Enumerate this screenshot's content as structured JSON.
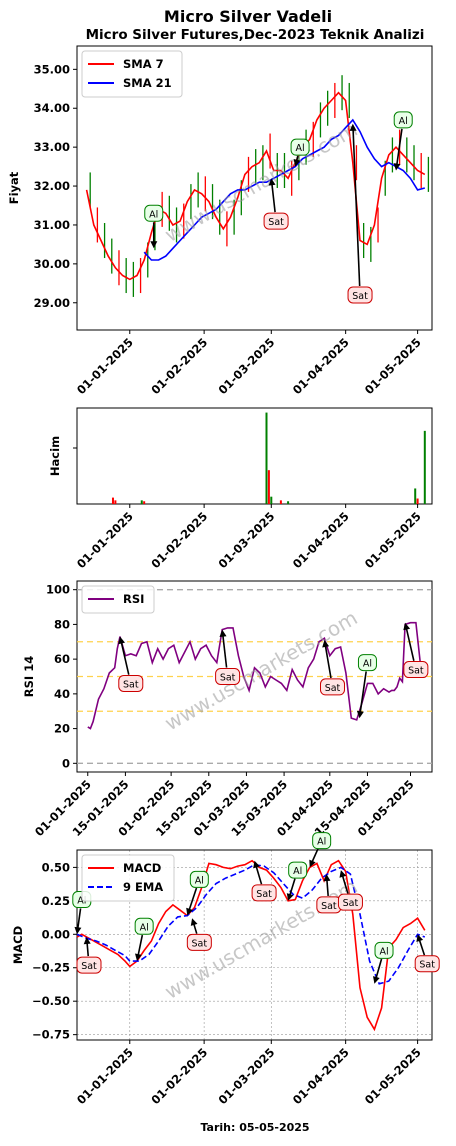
{
  "title": "Micro Silver Vadeli",
  "subtitle": "Micro Silver Futures,Dec-2023 Teknik Analizi",
  "footer": "Tarih: 05-05-2025",
  "watermark": "www.uscmarkets.com",
  "colors": {
    "up": "#008000",
    "down": "#ff0000",
    "sma7": "#ff0000",
    "sma21": "#0000ff",
    "rsi": "#800080",
    "macd": "#ff0000",
    "ema9": "#0000ff",
    "ref": "#ffd24d",
    "al": "#008000",
    "sat": "#cc0000"
  },
  "chart_data": [
    {
      "type": "line",
      "panel": "price",
      "ylabel": "Fiyat",
      "ylim": [
        28.3,
        35.6
      ],
      "yticks": [
        "29.00",
        "30.00",
        "31.00",
        "32.00",
        "33.00",
        "34.00",
        "35.00"
      ],
      "ytick_values": [
        29,
        30,
        31,
        32,
        33,
        34,
        35
      ],
      "xticks": [
        "01-01-2025",
        "01-02-2025",
        "01-03-2025",
        "01-04-2025",
        "01-05-2025"
      ],
      "xlim": [
        -22,
        126
      ],
      "xtick_days": [
        0,
        31,
        59,
        90,
        120
      ],
      "legend": "top-left",
      "series": [
        {
          "name": "SMA 7",
          "x": [
            -18,
            -15,
            -12,
            -9,
            -6,
            -3,
            0,
            3,
            6,
            9,
            12,
            15,
            18,
            21,
            24,
            27,
            30,
            33,
            36,
            39,
            42,
            45,
            48,
            51,
            54,
            57,
            60,
            63,
            66,
            69,
            72,
            75,
            78,
            81,
            84,
            87,
            90,
            93,
            96,
            99,
            102,
            105,
            108,
            111,
            114,
            117,
            120,
            123
          ],
          "y": [
            31.9,
            31.0,
            30.6,
            30.2,
            29.9,
            29.7,
            29.6,
            29.7,
            30.1,
            30.8,
            31.4,
            31.3,
            31.0,
            31.1,
            31.6,
            31.9,
            31.8,
            31.6,
            31.2,
            30.9,
            31.2,
            31.7,
            32.3,
            32.5,
            32.6,
            32.9,
            32.4,
            32.4,
            32.2,
            32.6,
            33.0,
            33.2,
            33.7,
            34.0,
            34.2,
            34.4,
            34.2,
            32.6,
            30.6,
            30.5,
            31.0,
            32.2,
            32.8,
            33.0,
            32.8,
            32.6,
            32.4,
            32.3
          ]
        },
        {
          "name": "SMA 21",
          "x": [
            6,
            9,
            12,
            15,
            18,
            21,
            24,
            27,
            30,
            33,
            36,
            39,
            42,
            45,
            48,
            51,
            54,
            57,
            60,
            63,
            66,
            69,
            72,
            75,
            78,
            81,
            84,
            87,
            90,
            93,
            96,
            99,
            102,
            105,
            108,
            111,
            114,
            117,
            120,
            123
          ],
          "y": [
            30.3,
            30.1,
            30.1,
            30.2,
            30.4,
            30.6,
            30.8,
            31.0,
            31.2,
            31.3,
            31.4,
            31.6,
            31.8,
            31.9,
            31.9,
            32.0,
            32.1,
            32.1,
            32.2,
            32.3,
            32.4,
            32.5,
            32.7,
            32.8,
            32.9,
            33.0,
            33.2,
            33.3,
            33.5,
            33.7,
            33.4,
            33.0,
            32.7,
            32.5,
            32.6,
            32.5,
            32.4,
            32.2,
            31.9,
            31.95
          ]
        }
      ],
      "annotations": [
        {
          "label": "Al",
          "x": 10,
          "y": 30.4,
          "tx": 10,
          "ty": 31.3
        },
        {
          "label": "Sat",
          "x": 59,
          "y": 32.2,
          "tx": 61,
          "ty": 31.1
        },
        {
          "label": "Al",
          "x": 69,
          "y": 32.5,
          "tx": 71,
          "ty": 33.0
        },
        {
          "label": "Sat",
          "x": 93,
          "y": 33.6,
          "tx": 96,
          "ty": 29.2
        },
        {
          "label": "Al",
          "x": 111,
          "y": 32.4,
          "tx": 114,
          "ty": 33.7
        }
      ]
    },
    {
      "type": "bar",
      "panel": "volume",
      "ylabel": "Hacim",
      "xticks": [
        "01-01-2025",
        "01-02-2025",
        "01-03-2025",
        "01-04-2025",
        "01-05-2025"
      ],
      "xlim": [
        -22,
        126
      ],
      "xtick_days": [
        0,
        31,
        59,
        90,
        120
      ],
      "bars": [
        {
          "x": -7,
          "v": 0.07,
          "c": "down"
        },
        {
          "x": -6,
          "v": 0.04,
          "c": "down"
        },
        {
          "x": 5,
          "v": 0.04,
          "c": "up"
        },
        {
          "x": 6,
          "v": 0.03,
          "c": "down"
        },
        {
          "x": 57,
          "v": 1.0,
          "c": "up"
        },
        {
          "x": 58,
          "v": 0.37,
          "c": "down"
        },
        {
          "x": 59,
          "v": 0.08,
          "c": "up"
        },
        {
          "x": 63,
          "v": 0.04,
          "c": "down"
        },
        {
          "x": 66,
          "v": 0.03,
          "c": "up"
        },
        {
          "x": 119,
          "v": 0.17,
          "c": "up"
        },
        {
          "x": 120,
          "v": 0.06,
          "c": "down"
        },
        {
          "x": 123,
          "v": 0.8,
          "c": "up"
        }
      ]
    },
    {
      "type": "line",
      "panel": "rsi",
      "ylabel": "RSI 14",
      "ylim": [
        -5,
        105
      ],
      "yticks": [
        "0",
        "20",
        "40",
        "60",
        "80",
        "100"
      ],
      "ytick_values": [
        0,
        20,
        40,
        60,
        80,
        100
      ],
      "ref_dashed": [
        0,
        100
      ],
      "ref_levels": [
        30,
        50,
        70
      ],
      "xticks": [
        "01-01-2025",
        "15-01-2025",
        "01-02-2025",
        "15-02-2025",
        "01-03-2025",
        "15-03-2025",
        "01-04-2025",
        "15-04-2025",
        "01-05-2025"
      ],
      "xlim": [
        -4,
        128
      ],
      "xtick_days": [
        0,
        14,
        31,
        45,
        59,
        73,
        90,
        104,
        120
      ],
      "legend": "top-left",
      "series": [
        {
          "name": "RSI",
          "x": [
            0,
            1,
            2,
            4,
            6,
            8,
            10,
            11,
            12,
            14,
            16,
            18,
            20,
            22,
            24,
            25,
            26,
            28,
            30,
            32,
            34,
            36,
            38,
            40,
            42,
            44,
            46,
            48,
            50,
            52,
            54,
            56,
            58,
            60,
            62,
            64,
            66,
            68,
            70,
            72,
            74,
            76,
            78,
            80,
            82,
            84,
            86,
            88,
            90,
            92,
            94,
            96,
            98,
            100,
            102,
            104,
            106,
            108,
            110,
            112,
            113,
            114,
            115,
            116,
            117,
            118,
            120,
            122,
            124
          ],
          "y": [
            21,
            20,
            24,
            37,
            43,
            52,
            55,
            66,
            73,
            62,
            63,
            62,
            69,
            70,
            58,
            62,
            66,
            60,
            66,
            68,
            58,
            64,
            70,
            60,
            66,
            68,
            62,
            58,
            77,
            78,
            78,
            62,
            50,
            42,
            55,
            52,
            44,
            50,
            48,
            46,
            42,
            54,
            48,
            44,
            55,
            60,
            70,
            72,
            62,
            66,
            67,
            52,
            26,
            25,
            35,
            46,
            46,
            40,
            43,
            41,
            42,
            42,
            44,
            49,
            47,
            80,
            81,
            81,
            53
          ]
        }
      ],
      "annotations": [
        {
          "label": "Sat",
          "x": 12,
          "y": 73,
          "tx": 16,
          "ty": 46
        },
        {
          "label": "Sat",
          "x": 50,
          "y": 77,
          "tx": 52,
          "ty": 50
        },
        {
          "label": "Sat",
          "x": 88,
          "y": 71,
          "tx": 91,
          "ty": 44
        },
        {
          "label": "Al",
          "x": 101,
          "y": 26,
          "tx": 104,
          "ty": 58
        },
        {
          "label": "Sat",
          "x": 118,
          "y": 81,
          "tx": 122,
          "ty": 54
        }
      ]
    },
    {
      "type": "line",
      "panel": "macd",
      "ylabel": "MACD",
      "ylim": [
        -0.79,
        0.63
      ],
      "yticks": [
        "−0.75",
        "−0.50",
        "−0.25",
        "0.00",
        "0.25",
        "0.50"
      ],
      "ytick_values": [
        -0.75,
        -0.5,
        -0.25,
        0,
        0.25,
        0.5
      ],
      "xticks": [
        "01-01-2025",
        "01-02-2025",
        "01-03-2025",
        "01-04-2025",
        "01-05-2025"
      ],
      "xlim": [
        -22,
        126
      ],
      "xtick_days": [
        0,
        31,
        59,
        90,
        120
      ],
      "legend": "top-left",
      "series": [
        {
          "name": "MACD",
          "x": [
            -22,
            -20,
            -17,
            -14,
            -11,
            -8,
            -5,
            -2,
            0,
            3,
            6,
            9,
            12,
            15,
            18,
            21,
            24,
            27,
            30,
            33,
            36,
            39,
            42,
            45,
            48,
            51,
            54,
            57,
            60,
            63,
            66,
            69,
            72,
            75,
            78,
            81,
            84,
            87,
            90,
            93,
            96,
            99,
            102,
            105,
            108,
            111,
            114,
            117,
            120,
            123
          ],
          "y": [
            -0.02,
            0.0,
            -0.03,
            -0.06,
            -0.09,
            -0.12,
            -0.15,
            -0.2,
            -0.24,
            -0.2,
            -0.12,
            -0.05,
            0.08,
            0.17,
            0.22,
            0.18,
            0.14,
            0.2,
            0.35,
            0.53,
            0.52,
            0.5,
            0.49,
            0.51,
            0.52,
            0.55,
            0.5,
            0.48,
            0.42,
            0.35,
            0.25,
            0.26,
            0.4,
            0.5,
            0.53,
            0.4,
            0.52,
            0.55,
            0.47,
            0.15,
            -0.4,
            -0.62,
            -0.71,
            -0.55,
            -0.1,
            -0.04,
            0.05,
            0.08,
            0.12,
            0.03
          ]
        },
        {
          "name": "9 EMA",
          "x": [
            -22,
            -18,
            -14,
            -10,
            -6,
            -2,
            0,
            4,
            8,
            12,
            16,
            20,
            24,
            28,
            32,
            36,
            40,
            44,
            48,
            52,
            56,
            60,
            64,
            68,
            72,
            76,
            80,
            84,
            88,
            92,
            96,
            100,
            104,
            108,
            112,
            116,
            120,
            123
          ],
          "y": [
            0.0,
            -0.03,
            -0.05,
            -0.08,
            -0.12,
            -0.16,
            -0.2,
            -0.2,
            -0.15,
            -0.05,
            0.06,
            0.13,
            0.14,
            0.2,
            0.3,
            0.38,
            0.42,
            0.45,
            0.48,
            0.52,
            0.51,
            0.46,
            0.38,
            0.3,
            0.27,
            0.33,
            0.42,
            0.47,
            0.5,
            0.45,
            0.15,
            -0.2,
            -0.37,
            -0.35,
            -0.25,
            -0.12,
            0.0,
            -0.02
          ]
        }
      ],
      "annotations": [
        {
          "label": "Al",
          "x": -22,
          "y": 0.0,
          "tx": -20,
          "ty": 0.26
        },
        {
          "label": "Sat",
          "x": -18,
          "y": -0.02,
          "tx": -17,
          "ty": -0.23
        },
        {
          "label": "Al",
          "x": 3,
          "y": -0.2,
          "tx": 6,
          "ty": 0.06
        },
        {
          "label": "Al",
          "x": 24,
          "y": 0.14,
          "tx": 29,
          "ty": 0.41
        },
        {
          "label": "Sat",
          "x": 26,
          "y": 0.12,
          "tx": 29,
          "ty": -0.06
        },
        {
          "label": "Sat",
          "x": 52,
          "y": 0.55,
          "tx": 56,
          "ty": 0.31
        },
        {
          "label": "Al",
          "x": 66,
          "y": 0.25,
          "tx": 70,
          "ty": 0.48
        },
        {
          "label": "Al",
          "x": 75,
          "y": 0.5,
          "tx": 80,
          "ty": 0.7
        },
        {
          "label": "Sat",
          "x": 82,
          "y": 0.45,
          "tx": 83,
          "ty": 0.22
        },
        {
          "label": "Sat",
          "x": 88,
          "y": 0.48,
          "tx": 92,
          "ty": 0.24
        },
        {
          "label": "Al",
          "x": 102,
          "y": -0.37,
          "tx": 106,
          "ty": -0.12
        },
        {
          "label": "Sat",
          "x": 120,
          "y": 0.0,
          "tx": 124,
          "ty": -0.22
        }
      ]
    }
  ]
}
